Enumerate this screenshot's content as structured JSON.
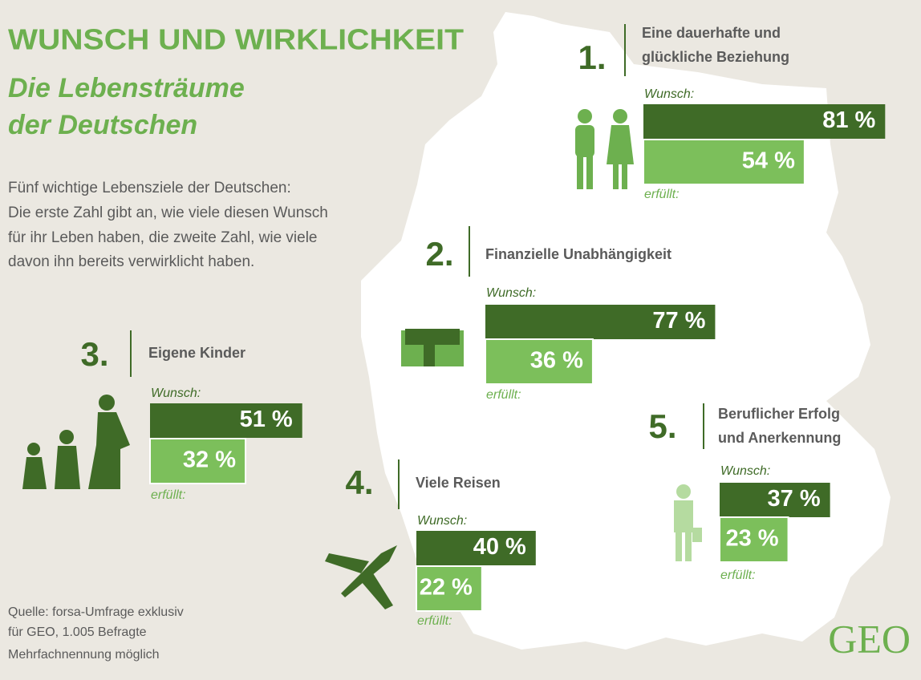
{
  "header": {
    "title": "WUNSCH UND WIRKLICHKEIT",
    "subtitle": [
      "Die Lebensträume",
      "der Deutschen"
    ]
  },
  "intro": [
    "Fünf wichtige Lebensziele der Deutschen:",
    "Die erste Zahl gibt an, wie viele diesen Wunsch",
    "für ihr Leben haben, die zweite Zahl, wie viele",
    "davon ihn bereits verwirklicht haben."
  ],
  "source": [
    "Quelle: forsa-Umfrage exklusiv",
    "für GEO, 1.005 Befragte",
    "Mehrfachnennung möglich"
  ],
  "logo": "GEO",
  "chart_data": [
    {
      "type": "bar",
      "rank": "1.",
      "title": [
        "Eine dauerhafte und",
        "glückliche Beziehung"
      ],
      "categories": [
        "Wunsch:",
        "erfüllt:"
      ],
      "values": [
        81,
        54
      ],
      "value_labels": [
        "81 %",
        "54 %"
      ],
      "colors": [
        "#3f6b27",
        "#7cbf5b"
      ]
    },
    {
      "type": "bar",
      "rank": "2.",
      "title": [
        "Finanzielle Unabhängigkeit"
      ],
      "categories": [
        "Wunsch:",
        "erfüllt:"
      ],
      "values": [
        77,
        36
      ],
      "value_labels": [
        "77 %",
        "36 %"
      ],
      "colors": [
        "#3f6b27",
        "#7cbf5b"
      ]
    },
    {
      "type": "bar",
      "rank": "3.",
      "title": [
        "Eigene Kinder"
      ],
      "categories": [
        "Wunsch:",
        "erfüllt:"
      ],
      "values": [
        51,
        32
      ],
      "value_labels": [
        "51 %",
        "32 %"
      ],
      "colors": [
        "#3f6b27",
        "#7cbf5b"
      ]
    },
    {
      "type": "bar",
      "rank": "4.",
      "title": [
        "Viele Reisen"
      ],
      "categories": [
        "Wunsch:",
        "erfüllt:"
      ],
      "values": [
        40,
        22
      ],
      "value_labels": [
        "40 %",
        "22 %"
      ],
      "colors": [
        "#3f6b27",
        "#7cbf5b"
      ]
    },
    {
      "type": "bar",
      "rank": "5.",
      "title": [
        "Beruflicher Erfolg",
        "und Anerkennung"
      ],
      "categories": [
        "Wunsch:",
        "erfüllt:"
      ],
      "values": [
        37,
        23
      ],
      "value_labels": [
        "37 %",
        "23 %"
      ],
      "colors": [
        "#3f6b27",
        "#7cbf5b"
      ]
    }
  ]
}
